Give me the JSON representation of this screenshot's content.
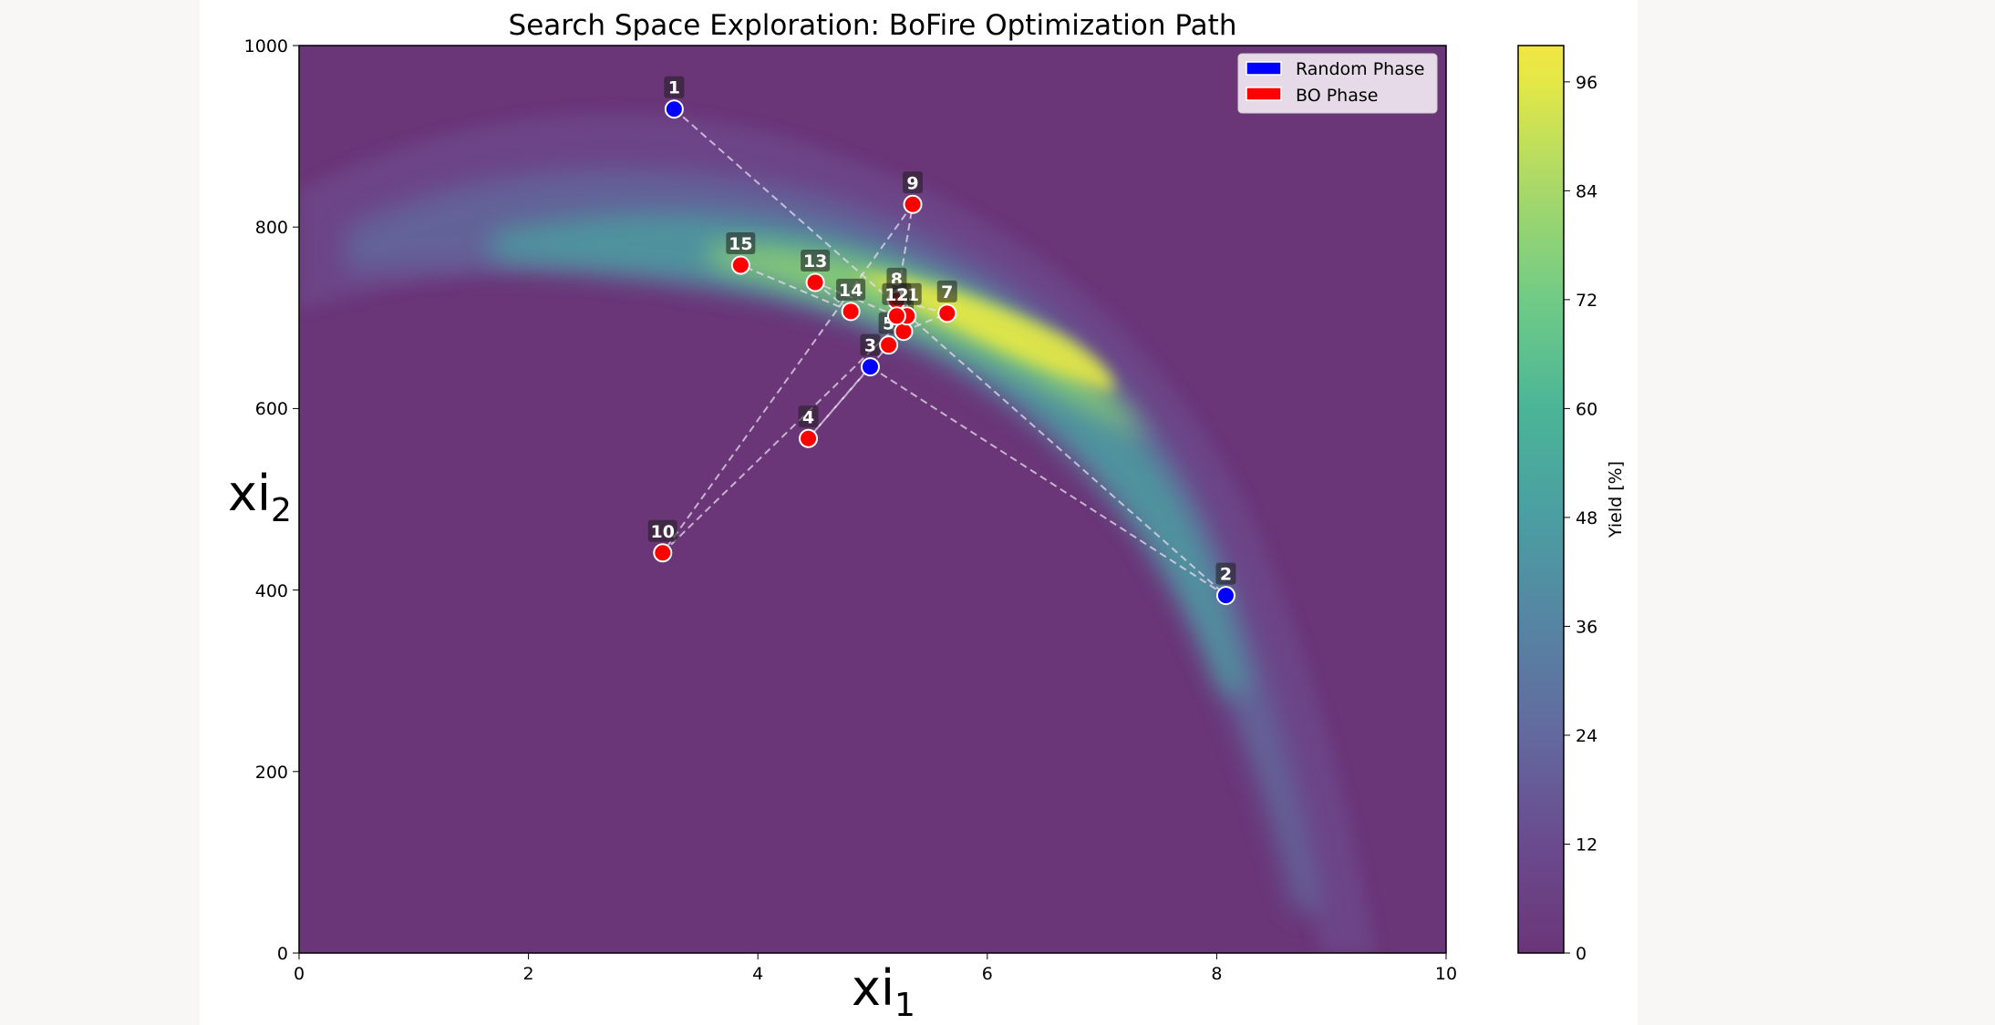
{
  "chart_data": {
    "type": "scatter",
    "title": "Search Space Exploration: BoFire Optimization Path",
    "xlabel": "xi",
    "xlabel_subscript": "1",
    "ylabel": "xi",
    "ylabel_subscript": "2",
    "xlim": [
      0,
      10
    ],
    "ylim": [
      0,
      1000
    ],
    "x_ticks": [
      "0",
      "2",
      "4",
      "6",
      "8",
      "10"
    ],
    "y_ticks": [
      "0",
      "200",
      "400",
      "600",
      "800",
      "1000"
    ],
    "background": "contour (filled) of Yield, viridis colormap, banana-shaped high-yield ridge peaking near xi1≈5.5, xi2≈680",
    "colorbar": {
      "label": "Yield [%]",
      "range": [
        0,
        100
      ],
      "ticks": [
        "0",
        "12",
        "24",
        "36",
        "48",
        "60",
        "72",
        "84",
        "96"
      ]
    },
    "legend": {
      "position": "upper right",
      "entries": [
        {
          "label": "Random Phase",
          "color": "#0000ff"
        },
        {
          "label": "BO Phase",
          "color": "#ff0000"
        }
      ]
    },
    "path_style": "dashed white line connecting points in order 1→15",
    "points": [
      {
        "id": "1",
        "x": 3.27,
        "y": 930,
        "phase": "Random"
      },
      {
        "id": "2",
        "x": 8.08,
        "y": 394,
        "phase": "Random"
      },
      {
        "id": "3",
        "x": 4.98,
        "y": 646,
        "phase": "Random"
      },
      {
        "id": "4",
        "x": 4.44,
        "y": 567,
        "phase": "BO"
      },
      {
        "id": "5",
        "x": 5.14,
        "y": 670,
        "phase": "BO"
      },
      {
        "id": "6",
        "x": 5.27,
        "y": 685,
        "phase": "BO"
      },
      {
        "id": "7",
        "x": 5.65,
        "y": 705,
        "phase": "BO"
      },
      {
        "id": "8",
        "x": 5.21,
        "y": 719,
        "phase": "BO"
      },
      {
        "id": "9",
        "x": 5.35,
        "y": 825,
        "phase": "BO"
      },
      {
        "id": "10",
        "x": 3.17,
        "y": 441,
        "phase": "BO"
      },
      {
        "id": "11",
        "x": 5.3,
        "y": 702,
        "phase": "BO"
      },
      {
        "id": "12",
        "x": 5.21,
        "y": 702,
        "phase": "BO"
      },
      {
        "id": "13",
        "x": 4.5,
        "y": 739,
        "phase": "BO"
      },
      {
        "id": "14",
        "x": 4.81,
        "y": 707,
        "phase": "BO"
      },
      {
        "id": "15",
        "x": 3.85,
        "y": 758,
        "phase": "BO"
      }
    ]
  },
  "colors": {
    "random": "#0000ff",
    "bo": "#ff0000",
    "bg_low": "#6a3678"
  }
}
